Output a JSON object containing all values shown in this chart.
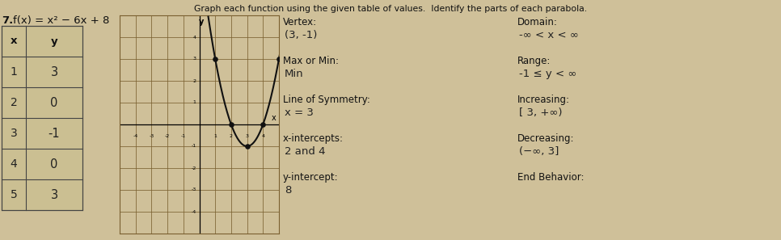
{
  "title_text": "Graph each function using the given table of values.  Identify the parts of each parabola.",
  "problem_number": "7.",
  "function_label": "f(x) = x² − 6x + 8",
  "table_x": [
    "x",
    "1",
    "2",
    "3",
    "4",
    "5"
  ],
  "table_y": [
    "y",
    "3",
    "0",
    "-1",
    "0",
    "3"
  ],
  "graph": {
    "xlim": [
      -5,
      5
    ],
    "ylim": [
      -5,
      5
    ],
    "grid_color": "#7a6030",
    "bg_color": "#cfc099"
  },
  "annotations": [
    [
      "Vertex:",
      "(3, -1)",
      "Domain:",
      "-∞ < x < ∞"
    ],
    [
      "Max or Min:",
      "Min",
      "Range:",
      "-1 ≤ y < ∞"
    ],
    [
      "Line of Symmetry:",
      "x = 3",
      "Increasing:",
      "[ 3, +∞)"
    ],
    [
      "x-intercepts:",
      "2 and 4",
      "Decreasing:",
      "(−∞, 3]"
    ],
    [
      "y-intercept:",
      "8",
      "End Behavior:",
      ""
    ]
  ],
  "bg_page_color": "#cfc099",
  "table_line_color": "#444444",
  "font_color": "#111111",
  "handwritten_color": "#222222"
}
